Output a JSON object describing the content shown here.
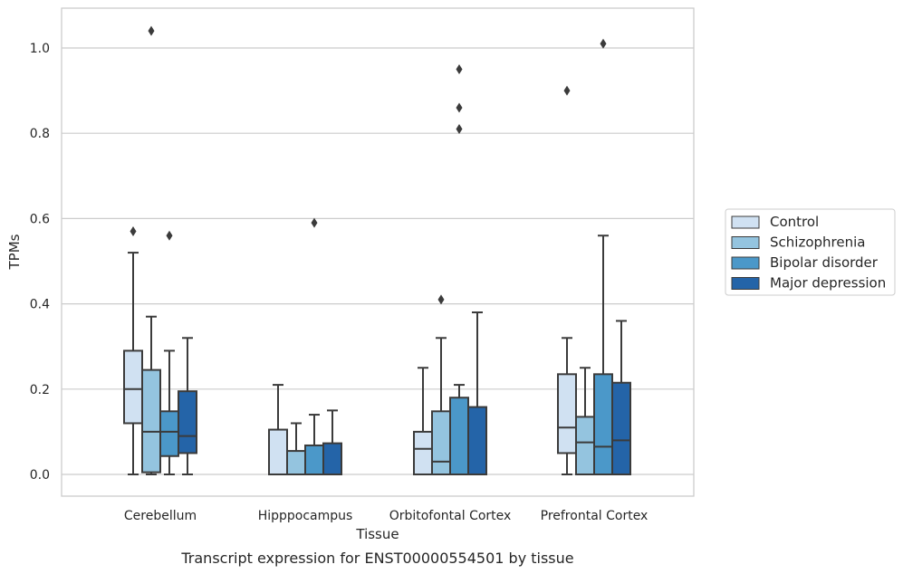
{
  "chart_data": {
    "type": "boxplot",
    "caption": "Transcript expression for ENST00000554501 by tissue",
    "xlabel": "Tissue",
    "ylabel": "TPMs",
    "ylim": [
      -0.05,
      1.09
    ],
    "yticks": [
      0.0,
      0.2,
      0.4,
      0.6,
      0.8,
      1.0
    ],
    "ytick_labels": [
      "0.0",
      "0.2",
      "0.4",
      "0.6",
      "0.8",
      "1.0"
    ],
    "grid": "horizontal",
    "legend_position": "right",
    "categories": [
      "Cerebellum",
      "Hipppocampus",
      "Orbitofontal Cortex",
      "Prefrontal Cortex"
    ],
    "series": [
      {
        "name": "Control",
        "color": "#d0e1f2",
        "boxes": [
          {
            "whislo": 0.0,
            "q1": 0.12,
            "med": 0.2,
            "q3": 0.29,
            "whishi": 0.52,
            "fliers": [
              0.57
            ]
          },
          {
            "whislo": 0.0,
            "q1": 0.0,
            "med": 0.0,
            "q3": 0.105,
            "whishi": 0.21,
            "fliers": []
          },
          {
            "whislo": 0.0,
            "q1": 0.0,
            "med": 0.06,
            "q3": 0.1,
            "whishi": 0.25,
            "fliers": []
          },
          {
            "whislo": 0.0,
            "q1": 0.05,
            "med": 0.11,
            "q3": 0.235,
            "whishi": 0.32,
            "fliers": [
              0.9
            ]
          }
        ]
      },
      {
        "name": "Schizophrenia",
        "color": "#94c4df",
        "boxes": [
          {
            "whislo": 0.0,
            "q1": 0.005,
            "med": 0.1,
            "q3": 0.245,
            "whishi": 0.37,
            "fliers": [
              1.04
            ]
          },
          {
            "whislo": 0.0,
            "q1": 0.0,
            "med": 0.0,
            "q3": 0.055,
            "whishi": 0.12,
            "fliers": []
          },
          {
            "whislo": 0.0,
            "q1": 0.0,
            "med": 0.03,
            "q3": 0.148,
            "whishi": 0.32,
            "fliers": [
              0.41
            ]
          },
          {
            "whislo": 0.0,
            "q1": 0.0,
            "med": 0.075,
            "q3": 0.135,
            "whishi": 0.25,
            "fliers": []
          }
        ]
      },
      {
        "name": "Bipolar disorder",
        "color": "#4b98c9",
        "boxes": [
          {
            "whislo": 0.0,
            "q1": 0.043,
            "med": 0.1,
            "q3": 0.148,
            "whishi": 0.29,
            "fliers": [
              0.56
            ]
          },
          {
            "whislo": 0.0,
            "q1": 0.0,
            "med": 0.0,
            "q3": 0.068,
            "whishi": 0.14,
            "fliers": [
              0.59
            ]
          },
          {
            "whislo": 0.0,
            "q1": 0.0,
            "med": 0.0,
            "q3": 0.18,
            "whishi": 0.21,
            "fliers": [
              0.81,
              0.86,
              0.95
            ]
          },
          {
            "whislo": 0.0,
            "q1": 0.0,
            "med": 0.065,
            "q3": 0.235,
            "whishi": 0.56,
            "fliers": [
              1.01
            ]
          }
        ]
      },
      {
        "name": "Major depression",
        "color": "#2464a8",
        "boxes": [
          {
            "whislo": 0.0,
            "q1": 0.05,
            "med": 0.09,
            "q3": 0.195,
            "whishi": 0.32,
            "fliers": []
          },
          {
            "whislo": 0.0,
            "q1": 0.0,
            "med": 0.0,
            "q3": 0.073,
            "whishi": 0.15,
            "fliers": []
          },
          {
            "whislo": 0.0,
            "q1": 0.0,
            "med": 0.0,
            "q3": 0.158,
            "whishi": 0.38,
            "fliers": []
          },
          {
            "whislo": 0.0,
            "q1": 0.0,
            "med": 0.08,
            "q3": 0.215,
            "whishi": 0.36,
            "fliers": []
          }
        ]
      }
    ]
  }
}
